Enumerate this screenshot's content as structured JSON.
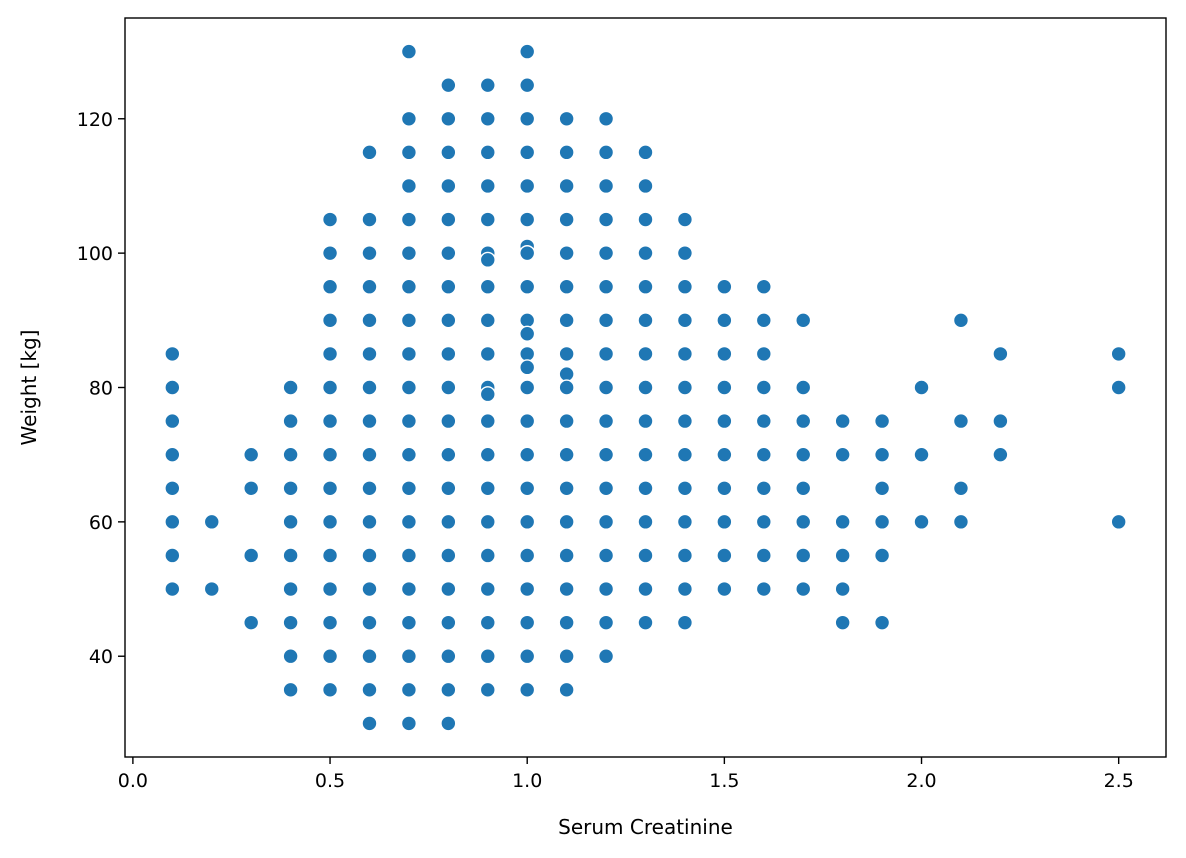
{
  "chart_data": {
    "type": "scatter",
    "title": "",
    "xlabel": "Serum Creatinine",
    "ylabel": "Weight [kg]",
    "xlim": [
      -0.02,
      2.62
    ],
    "ylim": [
      25,
      135
    ],
    "xticks": [
      0.0,
      0.5,
      1.0,
      1.5,
      2.0,
      2.5
    ],
    "xtick_labels": [
      "0.0",
      "0.5",
      "1.0",
      "1.5",
      "2.0",
      "2.5"
    ],
    "yticks": [
      40,
      60,
      80,
      100,
      120
    ],
    "ytick_labels": [
      "40",
      "60",
      "80",
      "100",
      "120"
    ],
    "grid": false,
    "marker_color": "#1f77b4",
    "marker_edge_color": "#ffffff",
    "points": [
      [
        0.1,
        85
      ],
      [
        0.1,
        80
      ],
      [
        0.1,
        75
      ],
      [
        0.1,
        70
      ],
      [
        0.1,
        65
      ],
      [
        0.1,
        60
      ],
      [
        0.1,
        55
      ],
      [
        0.1,
        50
      ],
      [
        0.2,
        60
      ],
      [
        0.2,
        50
      ],
      [
        0.3,
        70
      ],
      [
        0.3,
        65
      ],
      [
        0.3,
        55
      ],
      [
        0.3,
        45
      ],
      [
        0.4,
        80
      ],
      [
        0.4,
        75
      ],
      [
        0.4,
        70
      ],
      [
        0.4,
        65
      ],
      [
        0.4,
        60
      ],
      [
        0.4,
        55
      ],
      [
        0.4,
        50
      ],
      [
        0.4,
        45
      ],
      [
        0.4,
        40
      ],
      [
        0.4,
        35
      ],
      [
        0.5,
        105
      ],
      [
        0.5,
        100
      ],
      [
        0.5,
        95
      ],
      [
        0.5,
        90
      ],
      [
        0.5,
        85
      ],
      [
        0.5,
        80
      ],
      [
        0.5,
        75
      ],
      [
        0.5,
        70
      ],
      [
        0.5,
        65
      ],
      [
        0.5,
        60
      ],
      [
        0.5,
        55
      ],
      [
        0.5,
        50
      ],
      [
        0.5,
        45
      ],
      [
        0.5,
        40
      ],
      [
        0.5,
        35
      ],
      [
        0.6,
        115
      ],
      [
        0.6,
        105
      ],
      [
        0.6,
        100
      ],
      [
        0.6,
        95
      ],
      [
        0.6,
        90
      ],
      [
        0.6,
        85
      ],
      [
        0.6,
        80
      ],
      [
        0.6,
        75
      ],
      [
        0.6,
        70
      ],
      [
        0.6,
        65
      ],
      [
        0.6,
        60
      ],
      [
        0.6,
        55
      ],
      [
        0.6,
        50
      ],
      [
        0.6,
        45
      ],
      [
        0.6,
        40
      ],
      [
        0.6,
        35
      ],
      [
        0.6,
        30
      ],
      [
        0.7,
        130
      ],
      [
        0.7,
        120
      ],
      [
        0.7,
        115
      ],
      [
        0.7,
        110
      ],
      [
        0.7,
        105
      ],
      [
        0.7,
        100
      ],
      [
        0.7,
        95
      ],
      [
        0.7,
        90
      ],
      [
        0.7,
        85
      ],
      [
        0.7,
        80
      ],
      [
        0.7,
        75
      ],
      [
        0.7,
        70
      ],
      [
        0.7,
        65
      ],
      [
        0.7,
        60
      ],
      [
        0.7,
        55
      ],
      [
        0.7,
        50
      ],
      [
        0.7,
        45
      ],
      [
        0.7,
        40
      ],
      [
        0.7,
        35
      ],
      [
        0.7,
        30
      ],
      [
        0.8,
        125
      ],
      [
        0.8,
        120
      ],
      [
        0.8,
        115
      ],
      [
        0.8,
        110
      ],
      [
        0.8,
        105
      ],
      [
        0.8,
        100
      ],
      [
        0.8,
        95
      ],
      [
        0.8,
        90
      ],
      [
        0.8,
        85
      ],
      [
        0.8,
        80
      ],
      [
        0.8,
        75
      ],
      [
        0.8,
        70
      ],
      [
        0.8,
        65
      ],
      [
        0.8,
        60
      ],
      [
        0.8,
        55
      ],
      [
        0.8,
        50
      ],
      [
        0.8,
        45
      ],
      [
        0.8,
        40
      ],
      [
        0.8,
        35
      ],
      [
        0.8,
        30
      ],
      [
        0.9,
        125
      ],
      [
        0.9,
        120
      ],
      [
        0.9,
        115
      ],
      [
        0.9,
        110
      ],
      [
        0.9,
        105
      ],
      [
        0.9,
        100
      ],
      [
        0.9,
        99
      ],
      [
        0.9,
        95
      ],
      [
        0.9,
        90
      ],
      [
        0.9,
        85
      ],
      [
        0.9,
        80
      ],
      [
        0.9,
        79
      ],
      [
        0.9,
        75
      ],
      [
        0.9,
        70
      ],
      [
        0.9,
        65
      ],
      [
        0.9,
        60
      ],
      [
        0.9,
        55
      ],
      [
        0.9,
        50
      ],
      [
        0.9,
        45
      ],
      [
        0.9,
        40
      ],
      [
        0.9,
        35
      ],
      [
        1.0,
        130
      ],
      [
        1.0,
        125
      ],
      [
        1.0,
        120
      ],
      [
        1.0,
        115
      ],
      [
        1.0,
        110
      ],
      [
        1.0,
        105
      ],
      [
        1.0,
        101
      ],
      [
        1.0,
        100
      ],
      [
        1.0,
        95
      ],
      [
        1.0,
        90
      ],
      [
        1.0,
        88
      ],
      [
        1.0,
        85
      ],
      [
        1.0,
        83
      ],
      [
        1.0,
        80
      ],
      [
        1.0,
        75
      ],
      [
        1.0,
        70
      ],
      [
        1.0,
        65
      ],
      [
        1.0,
        60
      ],
      [
        1.0,
        55
      ],
      [
        1.0,
        50
      ],
      [
        1.0,
        45
      ],
      [
        1.0,
        40
      ],
      [
        1.0,
        35
      ],
      [
        1.1,
        120
      ],
      [
        1.1,
        115
      ],
      [
        1.1,
        110
      ],
      [
        1.1,
        105
      ],
      [
        1.1,
        100
      ],
      [
        1.1,
        95
      ],
      [
        1.1,
        90
      ],
      [
        1.1,
        85
      ],
      [
        1.1,
        82
      ],
      [
        1.1,
        80
      ],
      [
        1.1,
        75
      ],
      [
        1.1,
        70
      ],
      [
        1.1,
        65
      ],
      [
        1.1,
        60
      ],
      [
        1.1,
        55
      ],
      [
        1.1,
        50
      ],
      [
        1.1,
        45
      ],
      [
        1.1,
        40
      ],
      [
        1.1,
        35
      ],
      [
        1.2,
        120
      ],
      [
        1.2,
        115
      ],
      [
        1.2,
        110
      ],
      [
        1.2,
        105
      ],
      [
        1.2,
        100
      ],
      [
        1.2,
        95
      ],
      [
        1.2,
        90
      ],
      [
        1.2,
        85
      ],
      [
        1.2,
        80
      ],
      [
        1.2,
        75
      ],
      [
        1.2,
        70
      ],
      [
        1.2,
        65
      ],
      [
        1.2,
        60
      ],
      [
        1.2,
        55
      ],
      [
        1.2,
        50
      ],
      [
        1.2,
        45
      ],
      [
        1.2,
        40
      ],
      [
        1.3,
        115
      ],
      [
        1.3,
        110
      ],
      [
        1.3,
        105
      ],
      [
        1.3,
        100
      ],
      [
        1.3,
        95
      ],
      [
        1.3,
        90
      ],
      [
        1.3,
        85
      ],
      [
        1.3,
        80
      ],
      [
        1.3,
        75
      ],
      [
        1.3,
        70
      ],
      [
        1.3,
        65
      ],
      [
        1.3,
        60
      ],
      [
        1.3,
        55
      ],
      [
        1.3,
        50
      ],
      [
        1.3,
        45
      ],
      [
        1.4,
        105
      ],
      [
        1.4,
        100
      ],
      [
        1.4,
        95
      ],
      [
        1.4,
        90
      ],
      [
        1.4,
        85
      ],
      [
        1.4,
        80
      ],
      [
        1.4,
        75
      ],
      [
        1.4,
        70
      ],
      [
        1.4,
        65
      ],
      [
        1.4,
        60
      ],
      [
        1.4,
        55
      ],
      [
        1.4,
        50
      ],
      [
        1.4,
        45
      ],
      [
        1.5,
        95
      ],
      [
        1.5,
        90
      ],
      [
        1.5,
        85
      ],
      [
        1.5,
        80
      ],
      [
        1.5,
        75
      ],
      [
        1.5,
        70
      ],
      [
        1.5,
        65
      ],
      [
        1.5,
        60
      ],
      [
        1.5,
        55
      ],
      [
        1.5,
        50
      ],
      [
        1.6,
        95
      ],
      [
        1.6,
        90
      ],
      [
        1.6,
        85
      ],
      [
        1.6,
        80
      ],
      [
        1.6,
        75
      ],
      [
        1.6,
        70
      ],
      [
        1.6,
        65
      ],
      [
        1.6,
        60
      ],
      [
        1.6,
        55
      ],
      [
        1.6,
        50
      ],
      [
        1.7,
        90
      ],
      [
        1.7,
        80
      ],
      [
        1.7,
        75
      ],
      [
        1.7,
        70
      ],
      [
        1.7,
        65
      ],
      [
        1.7,
        60
      ],
      [
        1.7,
        55
      ],
      [
        1.7,
        50
      ],
      [
        1.8,
        75
      ],
      [
        1.8,
        70
      ],
      [
        1.8,
        60
      ],
      [
        1.8,
        55
      ],
      [
        1.8,
        50
      ],
      [
        1.8,
        45
      ],
      [
        1.9,
        75
      ],
      [
        1.9,
        70
      ],
      [
        1.9,
        65
      ],
      [
        1.9,
        60
      ],
      [
        1.9,
        55
      ],
      [
        1.9,
        45
      ],
      [
        2.0,
        80
      ],
      [
        2.0,
        70
      ],
      [
        2.0,
        60
      ],
      [
        2.1,
        90
      ],
      [
        2.1,
        75
      ],
      [
        2.1,
        65
      ],
      [
        2.1,
        60
      ],
      [
        2.2,
        85
      ],
      [
        2.2,
        75
      ],
      [
        2.2,
        70
      ],
      [
        2.5,
        85
      ],
      [
        2.5,
        80
      ],
      [
        2.5,
        60
      ]
    ]
  }
}
